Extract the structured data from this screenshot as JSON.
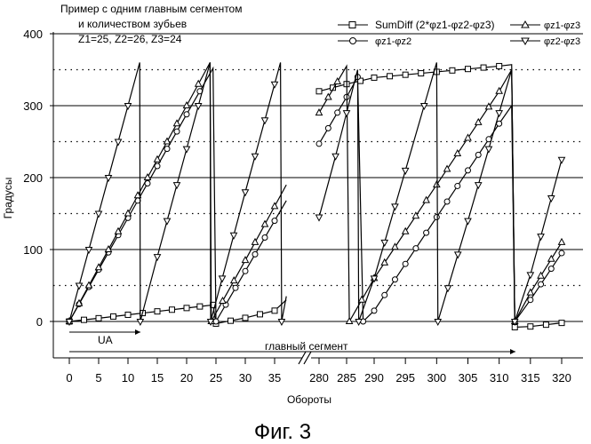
{
  "annotation": {
    "line1": "Пример с одним главным сегментом",
    "line2": "и количеством зубьев",
    "line3": "Z1=25, Z2=26, Z3=24"
  },
  "legend": {
    "sumdiff": "SumDiff (2*φz1-φz2-φz3)",
    "z1z3": "φz1-φz3",
    "z1z2": "φz1-φz2",
    "z2z3": "φz2-φz3"
  },
  "figure_caption": "Фиг. 3",
  "ua_label": "UA",
  "segment_label": "главный сегмент",
  "chart_data": {
    "type": "line",
    "title": "",
    "xlabel": "Обороты",
    "ylabel": "Градусы",
    "ylim": [
      -50,
      400
    ],
    "grid": "horizontal solid every 100, dotted every 50",
    "legend_placement": "top-right",
    "x_axis_broken": true,
    "x_segments": [
      {
        "range": [
          0,
          37
        ],
        "ticks": [
          0,
          5,
          10,
          15,
          20,
          25,
          30,
          35
        ]
      },
      {
        "range": [
          279,
          289
        ],
        "ticks": [
          280,
          285
        ]
      },
      {
        "range": [
          289,
          321
        ],
        "ticks": [
          290,
          295,
          300,
          305,
          310,
          315,
          320
        ]
      }
    ],
    "yticks": [
      0,
      100,
      200,
      300,
      400
    ],
    "series": [
      {
        "name": "SumDiff (2*φz1-φz2-φz3)",
        "marker": "square",
        "points": [
          [
            0,
            0
          ],
          [
            5,
            4.5
          ],
          [
            10,
            9.3
          ],
          [
            15,
            14
          ],
          [
            20,
            18.7
          ],
          [
            24.5,
            23
          ],
          [
            25,
            -3
          ],
          [
            30,
            5
          ],
          [
            35,
            15
          ],
          [
            37,
            30
          ],
          [
            280,
            320
          ],
          [
            285,
            330
          ],
          [
            290,
            339
          ],
          [
            295,
            343
          ],
          [
            300,
            347
          ],
          [
            305,
            351
          ],
          [
            310,
            355
          ],
          [
            312,
            357
          ],
          [
            312.5,
            -8
          ],
          [
            315,
            -7
          ],
          [
            320,
            -2
          ]
        ]
      },
      {
        "name": "φz1-φz2",
        "marker": "circle",
        "points": [
          [
            0,
            0
          ],
          [
            5,
            72
          ],
          [
            10,
            144
          ],
          [
            15,
            216
          ],
          [
            20,
            288
          ],
          [
            24.5,
            352
          ],
          [
            25,
            0
          ],
          [
            30,
            70
          ],
          [
            35,
            140
          ],
          [
            37,
            168
          ],
          [
            280,
            247
          ],
          [
            285,
            312
          ],
          [
            287,
            340
          ],
          [
            288,
            0
          ],
          [
            290,
            15
          ],
          [
            295,
            80
          ],
          [
            300,
            145
          ],
          [
            305,
            210
          ],
          [
            310,
            275
          ],
          [
            312,
            300
          ],
          [
            312.5,
            0
          ],
          [
            315,
            30
          ],
          [
            320,
            95
          ]
        ]
      },
      {
        "name": "φz1-φz3",
        "marker": "triangle-up",
        "points": [
          [
            0,
            0
          ],
          [
            5,
            75
          ],
          [
            10,
            150
          ],
          [
            15,
            225
          ],
          [
            20,
            300
          ],
          [
            24,
            360
          ],
          [
            24.2,
            0
          ],
          [
            30,
            85
          ],
          [
            35,
            160
          ],
          [
            37,
            190
          ],
          [
            280,
            290
          ],
          [
            285,
            355
          ],
          [
            285.5,
            0
          ],
          [
            290,
            60
          ],
          [
            295,
            125
          ],
          [
            300,
            190
          ],
          [
            305,
            255
          ],
          [
            310,
            320
          ],
          [
            312,
            350
          ],
          [
            312.5,
            0
          ],
          [
            315,
            40
          ],
          [
            320,
            110
          ]
        ]
      },
      {
        "name": "φz2-φz3",
        "marker": "triangle-down",
        "points": [
          [
            0,
            0
          ],
          [
            5,
            150
          ],
          [
            10,
            300
          ],
          [
            12,
            360
          ],
          [
            12.1,
            0
          ],
          [
            15,
            90
          ],
          [
            20,
            240
          ],
          [
            24,
            360
          ],
          [
            24.1,
            0
          ],
          [
            30,
            180
          ],
          [
            35,
            330
          ],
          [
            36,
            360
          ],
          [
            36.2,
            0
          ],
          [
            37,
            35
          ],
          [
            280,
            145
          ],
          [
            283,
            230
          ],
          [
            285,
            290
          ],
          [
            287,
            350
          ],
          [
            287.2,
            0
          ],
          [
            290,
            60
          ],
          [
            295,
            210
          ],
          [
            298,
            300
          ],
          [
            300,
            360
          ],
          [
            300.2,
            0
          ],
          [
            305,
            140
          ],
          [
            310,
            290
          ],
          [
            312,
            350
          ],
          [
            312.5,
            0
          ],
          [
            315,
            65
          ],
          [
            320,
            225
          ]
        ]
      }
    ]
  }
}
